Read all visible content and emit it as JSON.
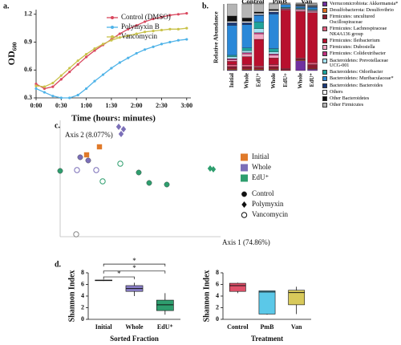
{
  "chart_data": [
    {
      "type": "line",
      "label": "a.",
      "xlabel": "Time (hours: minutes)",
      "ylabel": "OD₆₀₀",
      "x": [
        0,
        10,
        20,
        30,
        40,
        50,
        60,
        70,
        80,
        90,
        100,
        110,
        120,
        130,
        140,
        150,
        160,
        170,
        180
      ],
      "xlim": [
        0,
        185
      ],
      "xticks": [
        {
          "value": 0,
          "label": "0:00"
        },
        {
          "value": 30,
          "label": "0:30"
        },
        {
          "value": 60,
          "label": "1:00"
        },
        {
          "value": 90,
          "label": "1:30"
        },
        {
          "value": 120,
          "label": "2:00"
        },
        {
          "value": 150,
          "label": "2:30"
        },
        {
          "value": 180,
          "label": "3:00"
        }
      ],
      "ylim": [
        0.3,
        1.25
      ],
      "yticks": [
        0.3,
        0.6,
        0.9,
        1.2
      ],
      "series": [
        {
          "name": "Control (DMSO)",
          "color": "#d9475e",
          "values": [
            0.45,
            0.4,
            0.42,
            0.5,
            0.58,
            0.66,
            0.74,
            0.81,
            0.87,
            0.93,
            0.99,
            1.04,
            1.08,
            1.12,
            1.15,
            1.17,
            1.19,
            1.2,
            1.21
          ]
        },
        {
          "name": "Polymyxin B",
          "color": "#4fb3e8",
          "values": [
            0.4,
            0.36,
            0.32,
            0.3,
            0.3,
            0.33,
            0.4,
            0.48,
            0.55,
            0.62,
            0.68,
            0.73,
            0.78,
            0.82,
            0.85,
            0.88,
            0.9,
            0.92,
            0.93
          ]
        },
        {
          "name": "Vancomycin",
          "color": "#c9c24a",
          "values": [
            0.43,
            0.42,
            0.46,
            0.54,
            0.62,
            0.7,
            0.77,
            0.83,
            0.88,
            0.92,
            0.95,
            0.97,
            0.99,
            1.01,
            1.02,
            1.03,
            1.04,
            1.04,
            1.05
          ]
        }
      ]
    },
    {
      "type": "stacked_bar",
      "label": "b.",
      "ylabel": "Relative Abundance",
      "categories": [
        "Initial",
        "Whole",
        "EdU⁺",
        "Whole",
        "EdU+",
        "Whole",
        "EdU⁺"
      ],
      "groups": [
        "Control",
        "PmB",
        "Van"
      ],
      "ylim": [
        0,
        100
      ],
      "series": [
        {
          "name": "Verrucomicrobiota: Akkermansia*",
          "color": "#7030a0",
          "values": [
            1,
            1,
            1,
            1,
            0,
            15,
            2
          ]
        },
        {
          "name": "Desulfobacterota: Desulfovibrio",
          "color": "#e07020",
          "values": [
            1,
            1,
            1,
            1,
            0,
            1,
            1
          ]
        },
        {
          "name": "Firmicutes: uncultured Oscillospiraceae",
          "color": "#8b1a30",
          "values": [
            4,
            4,
            3,
            4,
            2,
            2,
            6
          ]
        },
        {
          "name": "Firmicutes: Lachnospiraceae NK4A136 group",
          "color": "#e06080",
          "values": [
            3,
            3,
            2,
            3,
            1,
            1,
            3
          ]
        },
        {
          "name": "Firmicutes: Ileibacterium",
          "color": "#b8102e",
          "values": [
            5,
            12,
            40,
            10,
            88,
            70,
            75
          ]
        },
        {
          "name": "Firmicutes: Dubosiella",
          "color": "#f3a6c4",
          "values": [
            2,
            4,
            8,
            4,
            1,
            2,
            2
          ]
        },
        {
          "name": "Firmicutes: Colidextribacter",
          "color": "#c0307e",
          "values": [
            2,
            2,
            2,
            2,
            1,
            1,
            1
          ]
        },
        {
          "name": "Bacteroidetes: Prevotellaceae UCG-001",
          "color": "#a6e2f2",
          "values": [
            3,
            3,
            6,
            3,
            1,
            1,
            1
          ]
        },
        {
          "name": "Bacteroidetes: Odoribacter",
          "color": "#1fa39b",
          "values": [
            2,
            4,
            10,
            5,
            1,
            1,
            1
          ]
        },
        {
          "name": "Bacteroidetes: Muribaculaceae*",
          "color": "#2a88d8",
          "values": [
            45,
            35,
            10,
            52,
            4,
            2,
            3
          ]
        },
        {
          "name": "Bacteroidetes: Bacteroides",
          "color": "#1a3a7a",
          "values": [
            4,
            3,
            1,
            3,
            0,
            1,
            1
          ]
        },
        {
          "name": "Others",
          "color": "#ffffff",
          "values": [
            2,
            2,
            2,
            2,
            0,
            1,
            1
          ]
        },
        {
          "name": "Other Bacteroidetes",
          "color": "#111111",
          "values": [
            8,
            5,
            2,
            2,
            0,
            1,
            1
          ]
        },
        {
          "name": "Other Firmicutes",
          "color": "#b5b5b5",
          "values": [
            18,
            21,
            12,
            8,
            1,
            1,
            2
          ]
        }
      ]
    },
    {
      "type": "scatter",
      "label": "c.",
      "xlabel": "Axis 1 (74.86%)",
      "ylabel": "Axis 2 (8.077%)",
      "xlim": [
        0,
        200
      ],
      "ylim": [
        0,
        145
      ],
      "legend_colors": [
        {
          "name": "Initial",
          "color": "#e07a2a"
        },
        {
          "name": "Whole",
          "color": "#7b6fb8"
        },
        {
          "name": "EdU⁺",
          "color": "#2e9e6e"
        }
      ],
      "legend_shapes": [
        {
          "name": "Control",
          "marker": "circle"
        },
        {
          "name": "Polymyxin",
          "marker": "diamond"
        },
        {
          "name": "Vancomycin",
          "marker": "open-circle"
        }
      ],
      "series": [
        {
          "color": "#e07a2a",
          "marker": "square",
          "x": [
            33,
            49
          ],
          "y": [
            102,
            112
          ]
        },
        {
          "color": "#7b6fb8",
          "marker": "circle",
          "x": [
            25,
            35
          ],
          "y": [
            99,
            95
          ]
        },
        {
          "color": "#7b6fb8",
          "marker": "diamond",
          "x": [
            73,
            79,
            76
          ],
          "y": [
            137,
            134,
            128
          ]
        },
        {
          "color": "#7b6fb8",
          "marker": "open-circle",
          "x": [
            45,
            21
          ],
          "y": [
            83,
            83
          ]
        },
        {
          "color": "#2e9e6e",
          "marker": "circle",
          "x": [
            0,
            98,
            111,
            133
          ],
          "y": [
            82,
            80,
            67,
            65
          ]
        },
        {
          "color": "#2e9e6e",
          "marker": "diamond",
          "x": [
            187,
            191
          ],
          "y": [
            85,
            84
          ]
        },
        {
          "color": "#2e9e6e",
          "marker": "open-circle",
          "x": [
            53,
            75
          ],
          "y": [
            69,
            91
          ]
        },
        {
          "color": "#888888",
          "marker": "open-circle",
          "x": [
            20
          ],
          "y": [
            3
          ]
        }
      ]
    },
    {
      "type": "box",
      "label": "d.",
      "xlabel": "Sorted Fraction",
      "ylabel": "Shannon Index",
      "categories": [
        "Initial",
        "Whole",
        "EdU⁺"
      ],
      "colors": [
        "#222222",
        "#8a7fc8",
        "#2e9e6e"
      ],
      "min": [
        6.6,
        4.0,
        0.8
      ],
      "q1": [
        6.65,
        4.8,
        1.5
      ],
      "median": [
        6.7,
        5.3,
        2.5
      ],
      "q3": [
        6.75,
        5.8,
        3.3
      ],
      "max": [
        6.8,
        6.3,
        4.5
      ],
      "ylim": [
        0,
        8
      ],
      "yticks": [
        0,
        2,
        4,
        6,
        8
      ],
      "annotations": [
        "*",
        "*",
        "*"
      ]
    },
    {
      "type": "box",
      "xlabel": "Treatment",
      "ylabel": "Shannon Index",
      "categories": [
        "Control",
        "PmB",
        "Van"
      ],
      "colors": [
        "#e0506a",
        "#5bc8e8",
        "#d8c95a"
      ],
      "min": [
        4.5,
        0.8,
        0.9
      ],
      "q1": [
        4.8,
        0.9,
        2.5
      ],
      "median": [
        5.8,
        4.7,
        4.6
      ],
      "q3": [
        6.2,
        4.9,
        5.0
      ],
      "max": [
        6.3,
        4.9,
        5.6
      ],
      "ylim": [
        0,
        8
      ],
      "yticks": [
        0,
        2,
        4,
        6,
        8
      ]
    }
  ]
}
